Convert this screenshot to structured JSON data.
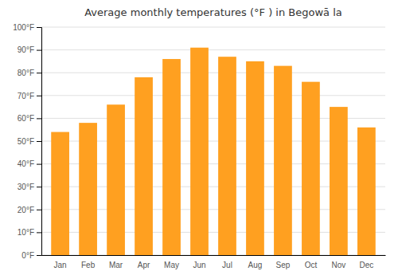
{
  "chart_data": {
    "type": "bar",
    "title": "Average monthly temperatures (°F ) in Begowā la",
    "categories": [
      "Jan",
      "Feb",
      "Mar",
      "Apr",
      "May",
      "Jun",
      "Jul",
      "Aug",
      "Sep",
      "Oct",
      "Nov",
      "Dec"
    ],
    "values": [
      54,
      58,
      66,
      78,
      86,
      91,
      87,
      85,
      83,
      76,
      65,
      56
    ],
    "color": "#FFA020",
    "ylim": [
      0,
      100
    ],
    "yticks": [
      {
        "value": 0,
        "label": "0°F"
      },
      {
        "value": 10,
        "label": "10°F"
      },
      {
        "value": 20,
        "label": "20°F"
      },
      {
        "value": 30,
        "label": "30°F"
      },
      {
        "value": 40,
        "label": "40°F"
      },
      {
        "value": 50,
        "label": "50°F"
      },
      {
        "value": 60,
        "label": "60°F"
      },
      {
        "value": 70,
        "label": "70°F"
      },
      {
        "value": 80,
        "label": "80°F"
      },
      {
        "value": 90,
        "label": "90°F"
      },
      {
        "value": 100,
        "label": "100°F"
      }
    ],
    "grid": true
  }
}
